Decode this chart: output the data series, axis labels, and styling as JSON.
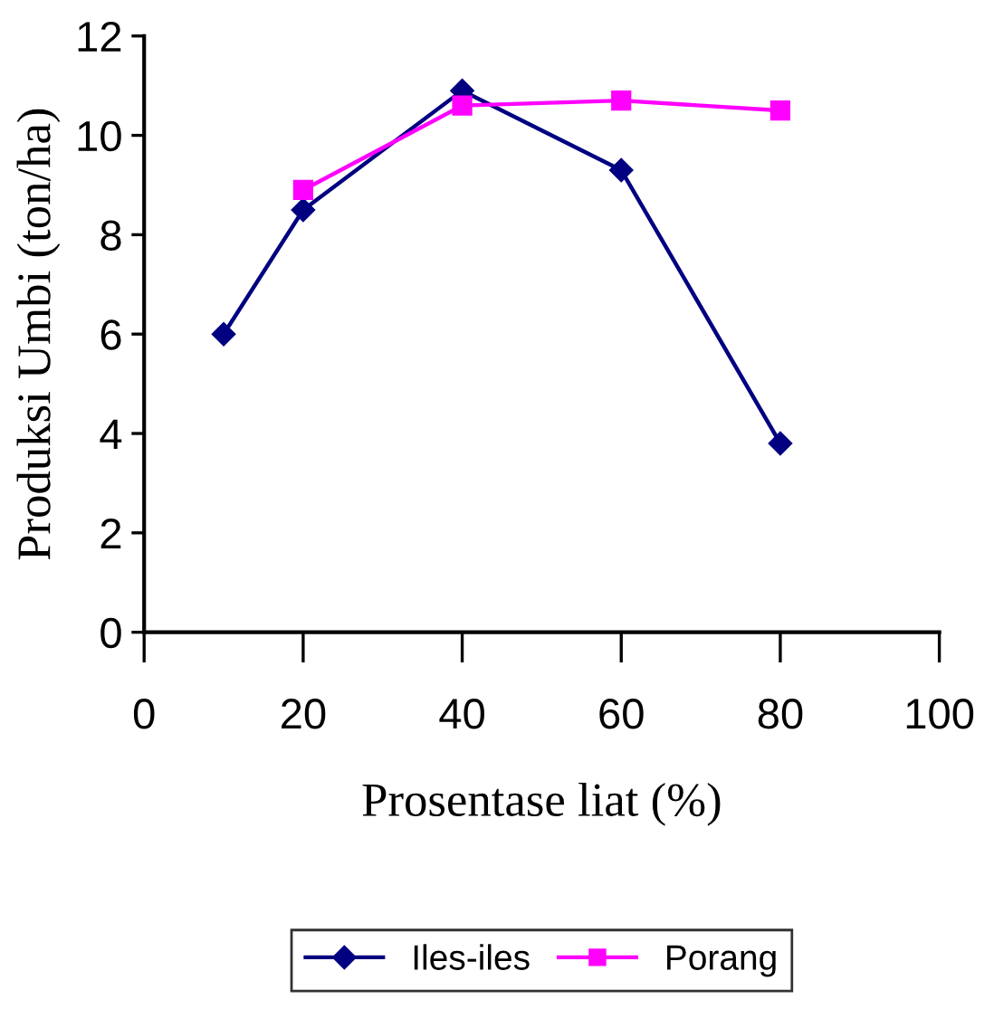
{
  "chart_data": {
    "type": "line",
    "xlabel": "Prosentase liat (%)",
    "ylabel": "Produksi Umbi (ton/ha)",
    "series": [
      {
        "name": "Iles-iles",
        "color": "#000080",
        "x": [
          10,
          20,
          40,
          60,
          80
        ],
        "values": [
          6.0,
          8.5,
          10.9,
          9.3,
          3.8
        ],
        "marker": "diamond"
      },
      {
        "name": "Porang",
        "color": "#ff00ff",
        "x": [
          20,
          40,
          60,
          80
        ],
        "values": [
          8.9,
          10.6,
          10.7,
          10.5
        ],
        "marker": "square"
      }
    ],
    "xlim": [
      0,
      100
    ],
    "xticks": [
      0,
      20,
      40,
      60,
      80,
      100
    ],
    "ylim": [
      0,
      12
    ],
    "yticks": [
      0,
      2,
      4,
      6,
      8,
      10,
      12
    ],
    "grid": false,
    "legend": "bottom",
    "line_style": "solid"
  }
}
